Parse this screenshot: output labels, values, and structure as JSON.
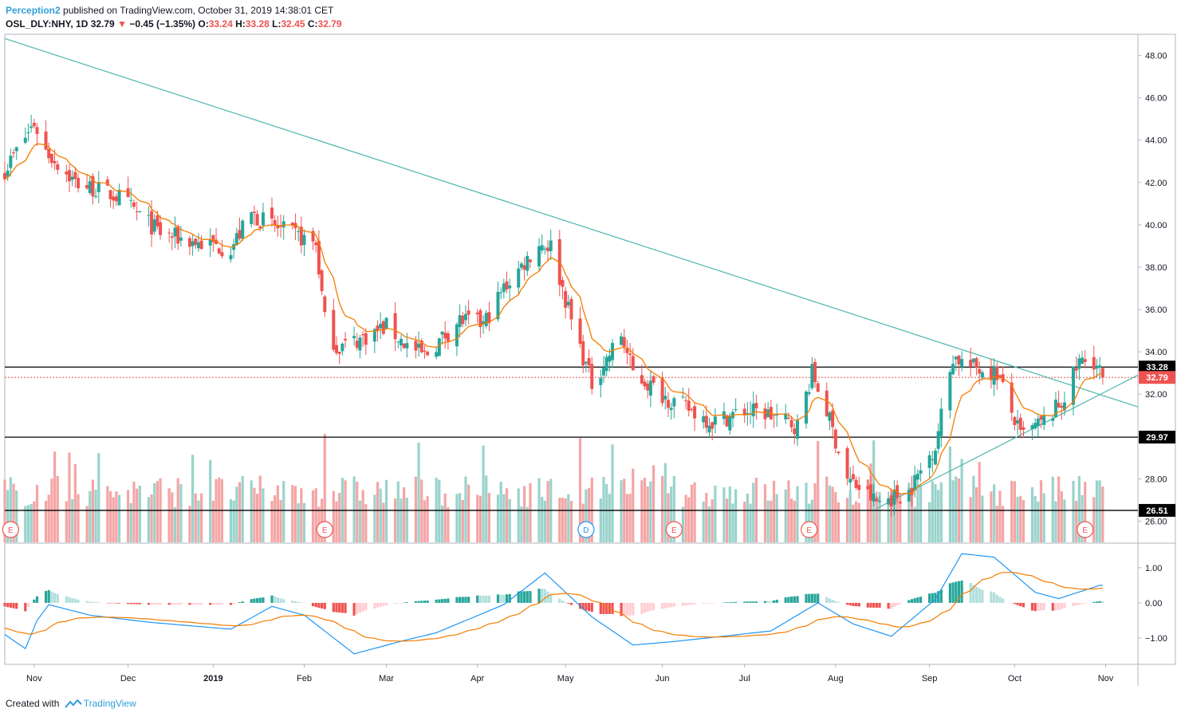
{
  "header": {
    "author": "Perception2",
    "published_text": "published on TradingView.com, October 31, 2019 14:38:01 CET",
    "symbol": "OSL_DLY:NHY, 1D",
    "last": "32.79",
    "change": "−0.45 (−1.35%)",
    "o_label": "O:",
    "o_value": "33.24",
    "h_label": "H:",
    "h_value": "33.28",
    "l_label": "L:",
    "l_value": "32.45",
    "c_label": "C:",
    "c_value": "32.79"
  },
  "footer": {
    "created_with": "Created with",
    "brand": "TradingView"
  },
  "colors": {
    "up": "#26a69a",
    "down": "#ef5350",
    "vol_up": "#99d3cc",
    "vol_down": "#f4a5a5",
    "ema": "#f57c00",
    "trend": "#4db6ac",
    "macd": "#2196f3",
    "signal": "#f57c00",
    "hist_up_strong": "#26a69a",
    "hist_up_weak": "#b2dfdb",
    "hist_down_strong": "#ef5350",
    "hist_down_weak": "#ffcdd2"
  },
  "chart_data": {
    "type": "candlestick",
    "price_axis": {
      "ticks": [
        "48.00",
        "46.00",
        "44.00",
        "42.00",
        "40.00",
        "38.00",
        "36.00",
        "34.00",
        "32.00",
        "28.00",
        "26.00"
      ],
      "range": [
        25.0,
        49.0
      ]
    },
    "macd_axis": {
      "ticks": [
        "1.00",
        "0.00",
        "−1.00"
      ],
      "range": [
        -1.75,
        1.7
      ]
    },
    "x_labels": [
      "Nov",
      "Dec",
      "2019",
      "Feb",
      "Mar",
      "Apr",
      "May",
      "Jun",
      "Jul",
      "Aug",
      "Sep",
      "Oct",
      "Nov"
    ],
    "levels": [
      {
        "label": "33.28",
        "value": 33.28,
        "style": "solid"
      },
      {
        "label": "29.97",
        "value": 29.97,
        "style": "solid"
      },
      {
        "label": "26.51",
        "value": 26.51,
        "style": "solid"
      },
      {
        "label": "32.79",
        "value": 32.79,
        "style": "dotted-last"
      }
    ],
    "events": [
      {
        "label": "E",
        "date": "2018-10-24",
        "kind": "earnings"
      },
      {
        "label": "E",
        "date": "2019-02-08",
        "kind": "earnings"
      },
      {
        "label": "D",
        "date": "2019-05-08",
        "kind": "dividend"
      },
      {
        "label": "E",
        "date": "2019-06-07",
        "kind": "earnings"
      },
      {
        "label": "E",
        "date": "2019-07-23",
        "kind": "earnings"
      },
      {
        "label": "E",
        "date": "2019-10-25",
        "kind": "earnings"
      }
    ],
    "trendlines": [
      {
        "name": "",
        "from": [
          "2018-10-22",
          48.8
        ],
        "to": [
          "2019-11-12",
          31.4
        ]
      },
      {
        "name": "",
        "from": [
          "2019-08-15",
          26.6
        ],
        "to": [
          "2019-11-12",
          32.9
        ]
      }
    ],
    "volume_scale_max": 4.0,
    "path_nodes": [
      [
        "2018-10-22",
        42.6
      ],
      [
        "2018-11-01",
        44.8
      ],
      [
        "2018-11-05",
        43.5
      ],
      [
        "2018-11-15",
        42.0
      ],
      [
        "2018-11-30",
        41.3
      ],
      [
        "2018-12-14",
        39.6
      ],
      [
        "2018-12-28",
        39.1
      ],
      [
        "2019-01-07",
        38.9
      ],
      [
        "2019-01-14",
        40.5
      ],
      [
        "2019-01-22",
        39.9
      ],
      [
        "2019-02-05",
        39.1
      ],
      [
        "2019-02-08",
        35.5
      ],
      [
        "2019-02-12",
        34.2
      ],
      [
        "2019-02-20",
        34.6
      ],
      [
        "2019-03-01",
        35.2
      ],
      [
        "2019-03-08",
        34.3
      ],
      [
        "2019-03-14",
        33.8
      ],
      [
        "2019-03-26",
        35.5
      ],
      [
        "2019-04-03",
        35.3
      ],
      [
        "2019-04-10",
        37.0
      ],
      [
        "2019-04-22",
        39.1
      ],
      [
        "2019-04-26",
        39.0
      ],
      [
        "2019-05-03",
        35.5
      ],
      [
        "2019-05-10",
        32.5
      ],
      [
        "2019-05-20",
        34.8
      ],
      [
        "2019-05-24",
        33.0
      ],
      [
        "2019-06-05",
        31.8
      ],
      [
        "2019-06-20",
        30.7
      ],
      [
        "2019-07-01",
        31.2
      ],
      [
        "2019-07-08",
        31.1
      ],
      [
        "2019-07-19",
        30.5
      ],
      [
        "2019-07-24",
        33.0
      ],
      [
        "2019-07-29",
        31.2
      ],
      [
        "2019-08-05",
        28.0
      ],
      [
        "2019-08-15",
        26.9
      ],
      [
        "2019-08-26",
        27.4
      ],
      [
        "2019-09-04",
        29.6
      ],
      [
        "2019-09-10",
        33.8
      ],
      [
        "2019-09-16",
        33.3
      ],
      [
        "2019-09-25",
        33.0
      ],
      [
        "2019-10-03",
        30.0
      ],
      [
        "2019-10-11",
        30.7
      ],
      [
        "2019-10-17",
        31.6
      ],
      [
        "2019-10-23",
        33.5
      ],
      [
        "2019-10-28",
        33.6
      ],
      [
        "2019-10-31",
        32.79
      ]
    ],
    "macd_nodes": [
      [
        "2018-10-22",
        -0.9
      ],
      [
        "2018-10-29",
        -1.3
      ],
      [
        "2018-11-02",
        -0.5
      ],
      [
        "2018-11-06",
        -0.05
      ],
      [
        "2018-11-20",
        -0.35
      ],
      [
        "2018-12-10",
        -0.55
      ],
      [
        "2019-01-07",
        -0.75
      ],
      [
        "2019-01-21",
        -0.1
      ],
      [
        "2019-02-01",
        -0.35
      ],
      [
        "2019-02-18",
        -1.45
      ],
      [
        "2019-03-08",
        -1.05
      ],
      [
        "2019-03-18",
        -0.85
      ],
      [
        "2019-04-10",
        -0.05
      ],
      [
        "2019-04-24",
        0.85
      ],
      [
        "2019-05-10",
        -0.4
      ],
      [
        "2019-05-24",
        -1.2
      ],
      [
        "2019-06-07",
        -1.1
      ],
      [
        "2019-07-10",
        -0.8
      ],
      [
        "2019-07-26",
        0.0
      ],
      [
        "2019-08-07",
        -0.6
      ],
      [
        "2019-08-20",
        -0.95
      ],
      [
        "2019-09-04",
        0.1
      ],
      [
        "2019-09-13",
        1.4
      ],
      [
        "2019-09-24",
        1.3
      ],
      [
        "2019-10-08",
        0.3
      ],
      [
        "2019-10-16",
        0.12
      ],
      [
        "2019-10-30",
        0.5
      ]
    ]
  }
}
